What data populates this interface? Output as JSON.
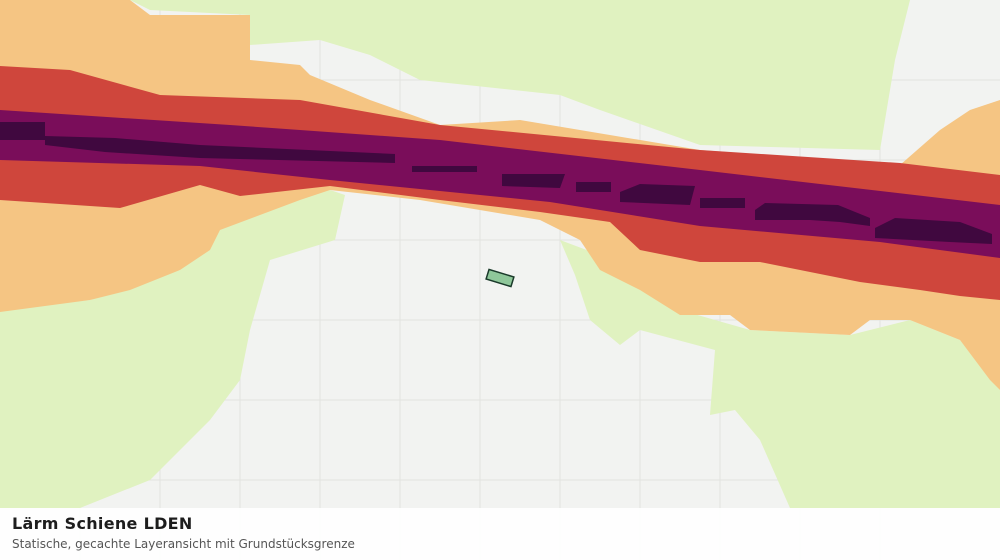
{
  "title": "Lärm Schiene LDEN",
  "subtitle": "Statische, gecachte Layeransicht mit Grundstücksgrenze"
}
